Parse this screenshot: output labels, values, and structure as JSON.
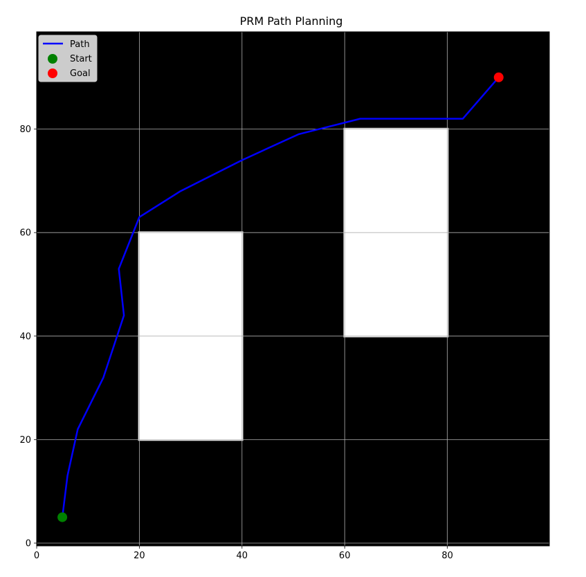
{
  "chart_data": {
    "type": "line",
    "title": "PRM Path Planning",
    "xlabel": "",
    "ylabel": "",
    "xlim": [
      0,
      100
    ],
    "ylim": [
      0,
      100
    ],
    "xticks": [
      "0",
      "20",
      "40",
      "60",
      "80"
    ],
    "yticks": [
      "0",
      "20",
      "40",
      "60",
      "80"
    ],
    "grid": true,
    "background": "#000000",
    "obstacles": [
      {
        "x": [
          20,
          40
        ],
        "y": [
          20,
          60
        ],
        "color": "#ffffff"
      },
      {
        "x": [
          60,
          80
        ],
        "y": [
          40,
          80
        ],
        "color": "#ffffff"
      }
    ],
    "series": [
      {
        "name": "Path",
        "color": "#0000ff",
        "x": [
          5,
          6,
          8,
          13,
          17,
          16,
          20,
          28,
          40,
          51,
          63,
          83,
          90
        ],
        "y": [
          5,
          13,
          22,
          32,
          44,
          53,
          63,
          68,
          74,
          79,
          82,
          82,
          90
        ]
      }
    ],
    "markers": [
      {
        "name": "Start",
        "x": 5,
        "y": 5,
        "color": "#008000"
      },
      {
        "name": "Goal",
        "x": 90,
        "y": 90,
        "color": "#ff0000"
      }
    ],
    "legend": {
      "placement": "top-left",
      "entries": [
        "Path",
        "Start",
        "Goal"
      ]
    }
  }
}
